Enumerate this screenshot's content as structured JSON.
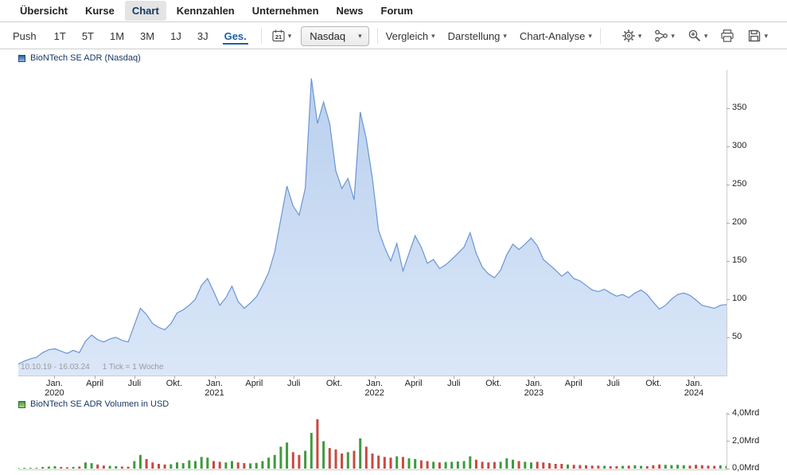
{
  "nav": {
    "items": [
      {
        "label": "Übersicht"
      },
      {
        "label": "Kurse"
      },
      {
        "label": "Chart",
        "active": true
      },
      {
        "label": "Kennzahlen"
      },
      {
        "label": "Unternehmen"
      },
      {
        "label": "News"
      },
      {
        "label": "Forum"
      }
    ]
  },
  "toolbar": {
    "push_label": "Push",
    "periods": [
      {
        "label": "1T"
      },
      {
        "label": "5T"
      },
      {
        "label": "1M"
      },
      {
        "label": "3M"
      },
      {
        "label": "1J"
      },
      {
        "label": "3J"
      },
      {
        "label": "Ges.",
        "active": true
      }
    ],
    "calendar_day": "21",
    "exchange_value": "Nasdaq",
    "menus": [
      {
        "label": "Vergleich"
      },
      {
        "label": "Darstellung"
      },
      {
        "label": "Chart-Analyse"
      }
    ],
    "icon_buttons": [
      "settings-icon",
      "share-icon",
      "zoom-icon",
      "print-icon",
      "save-icon"
    ],
    "accent_color": "#1e5fa9"
  },
  "chart_data": [
    {
      "type": "area",
      "title": "BioNTech SE ADR (Nasdaq)",
      "range_label": "10.10.19 - 16.03.24",
      "tick_note": "1 Tick = 1 Woche",
      "legend_position": "top-left",
      "grid": false,
      "ylim": [
        0,
        400
      ],
      "y_ticks": [
        50,
        100,
        150,
        200,
        250,
        300,
        350
      ],
      "line_color": "#6a95d2",
      "fill_color_top": "#b9d0ee",
      "fill_color_bottom": "#dbe7f8",
      "x_ticks": [
        {
          "m": "Jan.",
          "y": "2020",
          "f": 0.051
        },
        {
          "m": "April",
          "f": 0.108
        },
        {
          "m": "Juli",
          "f": 0.164
        },
        {
          "m": "Okt.",
          "f": 0.22
        },
        {
          "m": "Jan.",
          "y": "2021",
          "f": 0.277
        },
        {
          "m": "April",
          "f": 0.333
        },
        {
          "m": "Juli",
          "f": 0.389
        },
        {
          "m": "Okt.",
          "f": 0.446
        },
        {
          "m": "Jan.",
          "y": "2022",
          "f": 0.503
        },
        {
          "m": "April",
          "f": 0.558
        },
        {
          "m": "Juli",
          "f": 0.615
        },
        {
          "m": "Okt.",
          "f": 0.671
        },
        {
          "m": "Jan.",
          "y": "2023",
          "f": 0.728
        },
        {
          "m": "April",
          "f": 0.784
        },
        {
          "m": "Juli",
          "f": 0.84
        },
        {
          "m": "Okt.",
          "f": 0.897
        },
        {
          "m": "Jan.",
          "y": "2024",
          "f": 0.954
        }
      ],
      "values": [
        15,
        19,
        22,
        24,
        30,
        34,
        35,
        32,
        29,
        33,
        30,
        45,
        53,
        47,
        44,
        48,
        50,
        46,
        44,
        66,
        88,
        80,
        68,
        63,
        60,
        68,
        82,
        86,
        92,
        100,
        118,
        127,
        110,
        92,
        102,
        117,
        97,
        88,
        95,
        103,
        118,
        135,
        162,
        205,
        248,
        222,
        210,
        245,
        389,
        330,
        358,
        330,
        268,
        245,
        258,
        230,
        345,
        310,
        258,
        190,
        168,
        150,
        173,
        137,
        160,
        183,
        168,
        147,
        152,
        140,
        145,
        152,
        160,
        168,
        187,
        160,
        142,
        133,
        128,
        138,
        158,
        172,
        165,
        172,
        180,
        170,
        152,
        145,
        138,
        130,
        136,
        127,
        124,
        118,
        112,
        110,
        113,
        108,
        104,
        106,
        102,
        108,
        112,
        106,
        96,
        87,
        92,
        100,
        106,
        108,
        105,
        99,
        92,
        90,
        88,
        92,
        93
      ]
    },
    {
      "type": "bar",
      "title": "BioNTech SE ADR Volumen in USD",
      "ylim": [
        0,
        4
      ],
      "unit": "Mrd",
      "y_ticks": [
        {
          "label": "0,0Mrd",
          "v": 0
        },
        {
          "label": "2,0Mrd",
          "v": 2
        },
        {
          "label": "4,0Mrd",
          "v": 4
        }
      ],
      "up_color": "#3f9b3f",
      "down_color": "#c64a42",
      "values": [
        0.04,
        0.05,
        0.03,
        0.04,
        0.12,
        0.15,
        0.18,
        0.12,
        0.1,
        0.12,
        0.15,
        0.45,
        0.4,
        0.3,
        0.22,
        0.2,
        0.18,
        0.15,
        0.14,
        0.55,
        1.0,
        0.7,
        0.45,
        0.35,
        0.3,
        0.32,
        0.45,
        0.4,
        0.6,
        0.55,
        0.85,
        0.8,
        0.55,
        0.5,
        0.45,
        0.55,
        0.45,
        0.4,
        0.38,
        0.42,
        0.55,
        0.8,
        1.0,
        1.6,
        1.9,
        1.2,
        1.0,
        1.3,
        2.6,
        3.6,
        2.0,
        1.5,
        1.4,
        1.1,
        1.2,
        1.3,
        2.2,
        1.6,
        1.1,
        0.95,
        0.85,
        0.8,
        0.9,
        0.85,
        0.75,
        0.7,
        0.6,
        0.55,
        0.5,
        0.45,
        0.48,
        0.5,
        0.52,
        0.55,
        0.9,
        0.65,
        0.5,
        0.45,
        0.48,
        0.5,
        0.75,
        0.65,
        0.55,
        0.5,
        0.45,
        0.5,
        0.45,
        0.4,
        0.35,
        0.35,
        0.3,
        0.28,
        0.26,
        0.25,
        0.22,
        0.22,
        0.2,
        0.18,
        0.18,
        0.2,
        0.22,
        0.25,
        0.2,
        0.18,
        0.25,
        0.3,
        0.28,
        0.26,
        0.28,
        0.25,
        0.22,
        0.28,
        0.25,
        0.22,
        0.2,
        0.24,
        0.2
      ]
    }
  ]
}
